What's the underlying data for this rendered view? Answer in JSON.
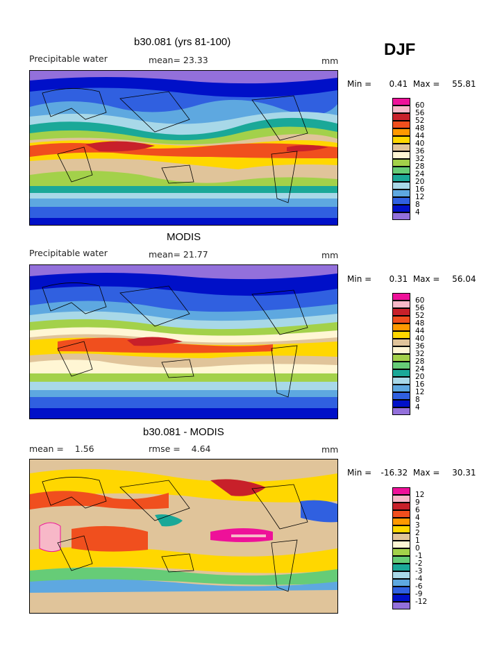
{
  "season": "DJF",
  "panels": [
    {
      "title": "b30.081 (yrs 81-100)",
      "left_label": "Precipitable water",
      "mid_label": "mean=  23.33",
      "unit": "mm",
      "min_label": "Min =",
      "min_value": "0.41",
      "max_label": "Max =",
      "max_value": "55.81",
      "legend_labels": [
        "60",
        "56",
        "52",
        "48",
        "44",
        "40",
        "36",
        "32",
        "28",
        "24",
        "20",
        "16",
        "12",
        "8",
        "4"
      ]
    },
    {
      "title": "MODIS",
      "left_label": "Precipitable water",
      "mid_label": "mean=  21.77",
      "unit": "mm",
      "min_label": "Min =",
      "min_value": "0.31",
      "max_label": "Max =",
      "max_value": "56.04",
      "legend_labels": [
        "60",
        "56",
        "52",
        "48",
        "44",
        "40",
        "36",
        "32",
        "28",
        "24",
        "20",
        "16",
        "12",
        "8",
        "4"
      ]
    },
    {
      "title": "b30.081 - MODIS",
      "left_label": "mean =    1.56",
      "mid_label": "rmse =    4.64",
      "unit": "mm",
      "min_label": "Min =",
      "min_value": "-16.32",
      "max_label": "Max =",
      "max_value": "30.31",
      "legend_labels": [
        "12",
        "9",
        "6",
        "4",
        "3",
        "2",
        "1",
        "0",
        "-1",
        "-2",
        "-3",
        "-4",
        "-6",
        "-9",
        "-12"
      ]
    }
  ],
  "colors": {
    "scale": [
      "#ee1199",
      "#f7b8c8",
      "#c8202a",
      "#f04f1e",
      "#ff9900",
      "#ffd700",
      "#e0c49a",
      "#fff6d4",
      "#a3d14a",
      "#66cc77",
      "#1aa898",
      "#a8d8e8",
      "#5ea8e0",
      "#3060e0",
      "#0010c8",
      "#9370db"
    ],
    "land_outline": "#000000"
  }
}
